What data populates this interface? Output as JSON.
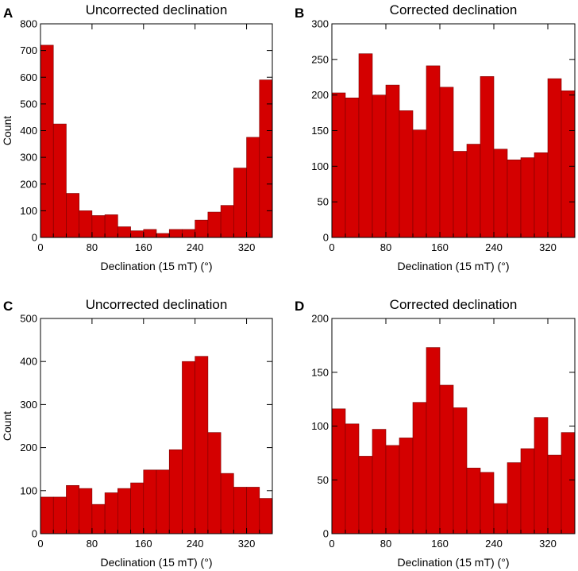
{
  "chart_data": [
    {
      "type": "bar",
      "panel": "A",
      "title": "Uncorrected declination",
      "xlabel": "Declination (15 mT) (°)",
      "ylabel": "Count",
      "xlim": [
        0,
        360
      ],
      "ylim": [
        0,
        800
      ],
      "xticks": [
        0,
        80,
        160,
        240,
        320
      ],
      "yticks": [
        0,
        100,
        200,
        300,
        400,
        500,
        600,
        700,
        800
      ],
      "bin_width": 20,
      "bin_starts": [
        0,
        20,
        40,
        60,
        80,
        100,
        120,
        140,
        160,
        180,
        200,
        220,
        240,
        260,
        280,
        300,
        320,
        340
      ],
      "values": [
        720,
        425,
        165,
        100,
        82,
        85,
        40,
        25,
        30,
        15,
        30,
        30,
        65,
        95,
        120,
        260,
        375,
        590
      ]
    },
    {
      "type": "bar",
      "panel": "B",
      "title": "Corrected declination",
      "xlabel": "Declination (15 mT) (°)",
      "ylabel": "",
      "xlim": [
        0,
        360
      ],
      "ylim": [
        0,
        300
      ],
      "xticks": [
        0,
        80,
        160,
        240,
        320
      ],
      "yticks": [
        0,
        50,
        100,
        150,
        200,
        250,
        300
      ],
      "bin_width": 20,
      "bin_starts": [
        0,
        20,
        40,
        60,
        80,
        100,
        120,
        140,
        160,
        180,
        200,
        220,
        240,
        260,
        280,
        300,
        320,
        340
      ],
      "values": [
        203,
        196,
        258,
        200,
        214,
        178,
        151,
        241,
        211,
        121,
        131,
        226,
        124,
        109,
        112,
        119,
        223,
        206
      ]
    },
    {
      "type": "bar",
      "panel": "C",
      "title": "Uncorrected declination",
      "xlabel": "Declination (15 mT) (°)",
      "ylabel": "Count",
      "xlim": [
        0,
        360
      ],
      "ylim": [
        0,
        500
      ],
      "xticks": [
        0,
        80,
        160,
        240,
        320
      ],
      "yticks": [
        0,
        100,
        200,
        300,
        400,
        500
      ],
      "bin_width": 20,
      "bin_starts": [
        0,
        20,
        40,
        60,
        80,
        100,
        120,
        140,
        160,
        180,
        200,
        220,
        240,
        260,
        280,
        300,
        320,
        340
      ],
      "values": [
        85,
        85,
        112,
        105,
        68,
        95,
        105,
        118,
        148,
        148,
        195,
        400,
        412,
        235,
        140,
        108,
        108,
        82
      ]
    },
    {
      "type": "bar",
      "panel": "D",
      "title": "Corrected declination",
      "xlabel": "Declination (15 mT) (°)",
      "ylabel": "",
      "xlim": [
        0,
        360
      ],
      "ylim": [
        0,
        200
      ],
      "xticks": [
        0,
        80,
        160,
        240,
        320
      ],
      "yticks": [
        0,
        50,
        100,
        150,
        200
      ],
      "bin_width": 20,
      "bin_starts": [
        0,
        20,
        40,
        60,
        80,
        100,
        120,
        140,
        160,
        180,
        200,
        220,
        240,
        260,
        280,
        300,
        320,
        340
      ],
      "values": [
        116,
        102,
        72,
        97,
        82,
        89,
        122,
        173,
        138,
        117,
        61,
        57,
        28,
        66,
        79,
        108,
        73,
        94
      ]
    }
  ],
  "colors": {
    "bar_fill": "#d40000",
    "bar_edge": "#7a0000"
  }
}
